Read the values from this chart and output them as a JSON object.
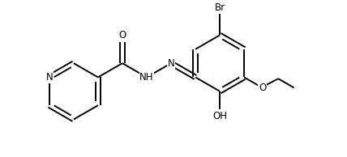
{
  "background_color": "#ffffff",
  "line_color": "#000000",
  "line_width": 1.4,
  "font_size": 8.5,
  "figsize": [
    4.28,
    1.94
  ],
  "dpi": 100,
  "xlim": [
    -1.0,
    9.5
  ],
  "ylim": [
    -0.5,
    4.8
  ]
}
